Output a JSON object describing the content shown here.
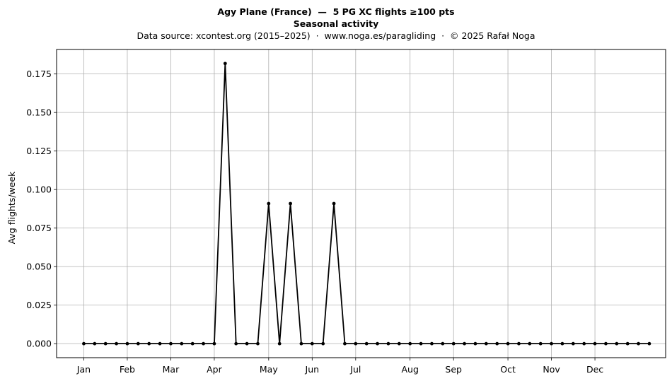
{
  "chart_data": {
    "type": "line",
    "title": "Agy Plane (France)  —  5 PG XC flights ≥100 pts",
    "subtitle": "Seasonal activity",
    "source_line": "Data source: xcontest.org (2015–2025)  ·  www.noga.es/paragliding  ·  © 2025 Rafał Noga",
    "xlabel": "",
    "ylabel": "Avg flights/week",
    "week_start": 1,
    "ylim": [
      -0.0091,
      0.1909
    ],
    "xlim": [
      -1.5,
      54.5
    ],
    "yticks": [
      0.0,
      0.025,
      0.05,
      0.075,
      0.1,
      0.125,
      0.15,
      0.175
    ],
    "ytick_labels": [
      "0.000",
      "0.025",
      "0.050",
      "0.075",
      "0.100",
      "0.125",
      "0.150",
      "0.175"
    ],
    "xticks": [
      {
        "week": 1,
        "label": "Jan"
      },
      {
        "week": 5,
        "label": "Feb"
      },
      {
        "week": 9,
        "label": "Mar"
      },
      {
        "week": 13,
        "label": "Apr"
      },
      {
        "week": 18,
        "label": "May"
      },
      {
        "week": 22,
        "label": "Jun"
      },
      {
        "week": 26,
        "label": "Jul"
      },
      {
        "week": 31,
        "label": "Aug"
      },
      {
        "week": 35,
        "label": "Sep"
      },
      {
        "week": 40,
        "label": "Oct"
      },
      {
        "week": 44,
        "label": "Nov"
      },
      {
        "week": 48,
        "label": "Dec"
      }
    ],
    "grid": true,
    "line_color": "#000000",
    "values": [
      0,
      0,
      0,
      0,
      0,
      0,
      0,
      0,
      0,
      0,
      0,
      0,
      0,
      0.1818,
      0,
      0,
      0,
      0.0909,
      0,
      0.0909,
      0,
      0,
      0,
      0.0909,
      0,
      0,
      0,
      0,
      0,
      0,
      0,
      0,
      0,
      0,
      0,
      0,
      0,
      0,
      0,
      0,
      0,
      0,
      0,
      0,
      0,
      0,
      0,
      0,
      0,
      0,
      0,
      0,
      0
    ]
  }
}
